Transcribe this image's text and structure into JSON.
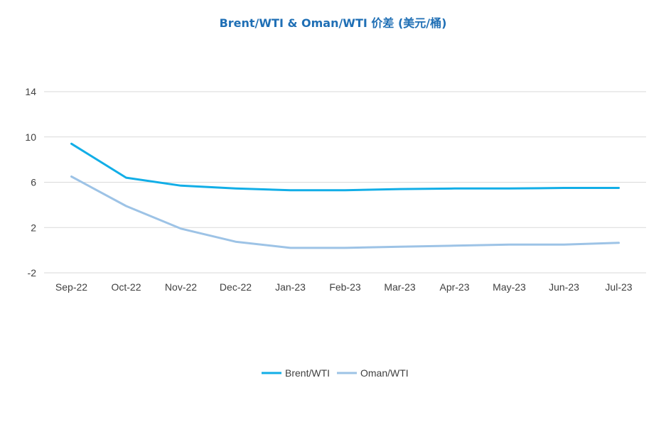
{
  "chart_data": {
    "type": "line",
    "title": "Brent/WTI & Oman/WTI 价差 (美元/桶)",
    "categories": [
      "Sep-22",
      "Oct-22",
      "Nov-22",
      "Dec-22",
      "Jan-23",
      "Feb-23",
      "Mar-23",
      "Apr-23",
      "May-23",
      "Jun-23",
      "Jul-23"
    ],
    "series": [
      {
        "name": "Brent/WTI",
        "color": "#12AEE7",
        "values": [
          9.4,
          6.4,
          5.7,
          5.45,
          5.3,
          5.3,
          5.4,
          5.45,
          5.45,
          5.5,
          5.5
        ]
      },
      {
        "name": "Oman/WTI",
        "color": "#9DC3E6",
        "values": [
          6.5,
          3.9,
          1.9,
          0.75,
          0.2,
          0.2,
          0.3,
          0.4,
          0.5,
          0.5,
          0.65
        ]
      }
    ],
    "yticks": [
      -2,
      2,
      6,
      10,
      14
    ],
    "ylim": [
      -2,
      14
    ],
    "grid": true,
    "legend_position": "bottom"
  }
}
